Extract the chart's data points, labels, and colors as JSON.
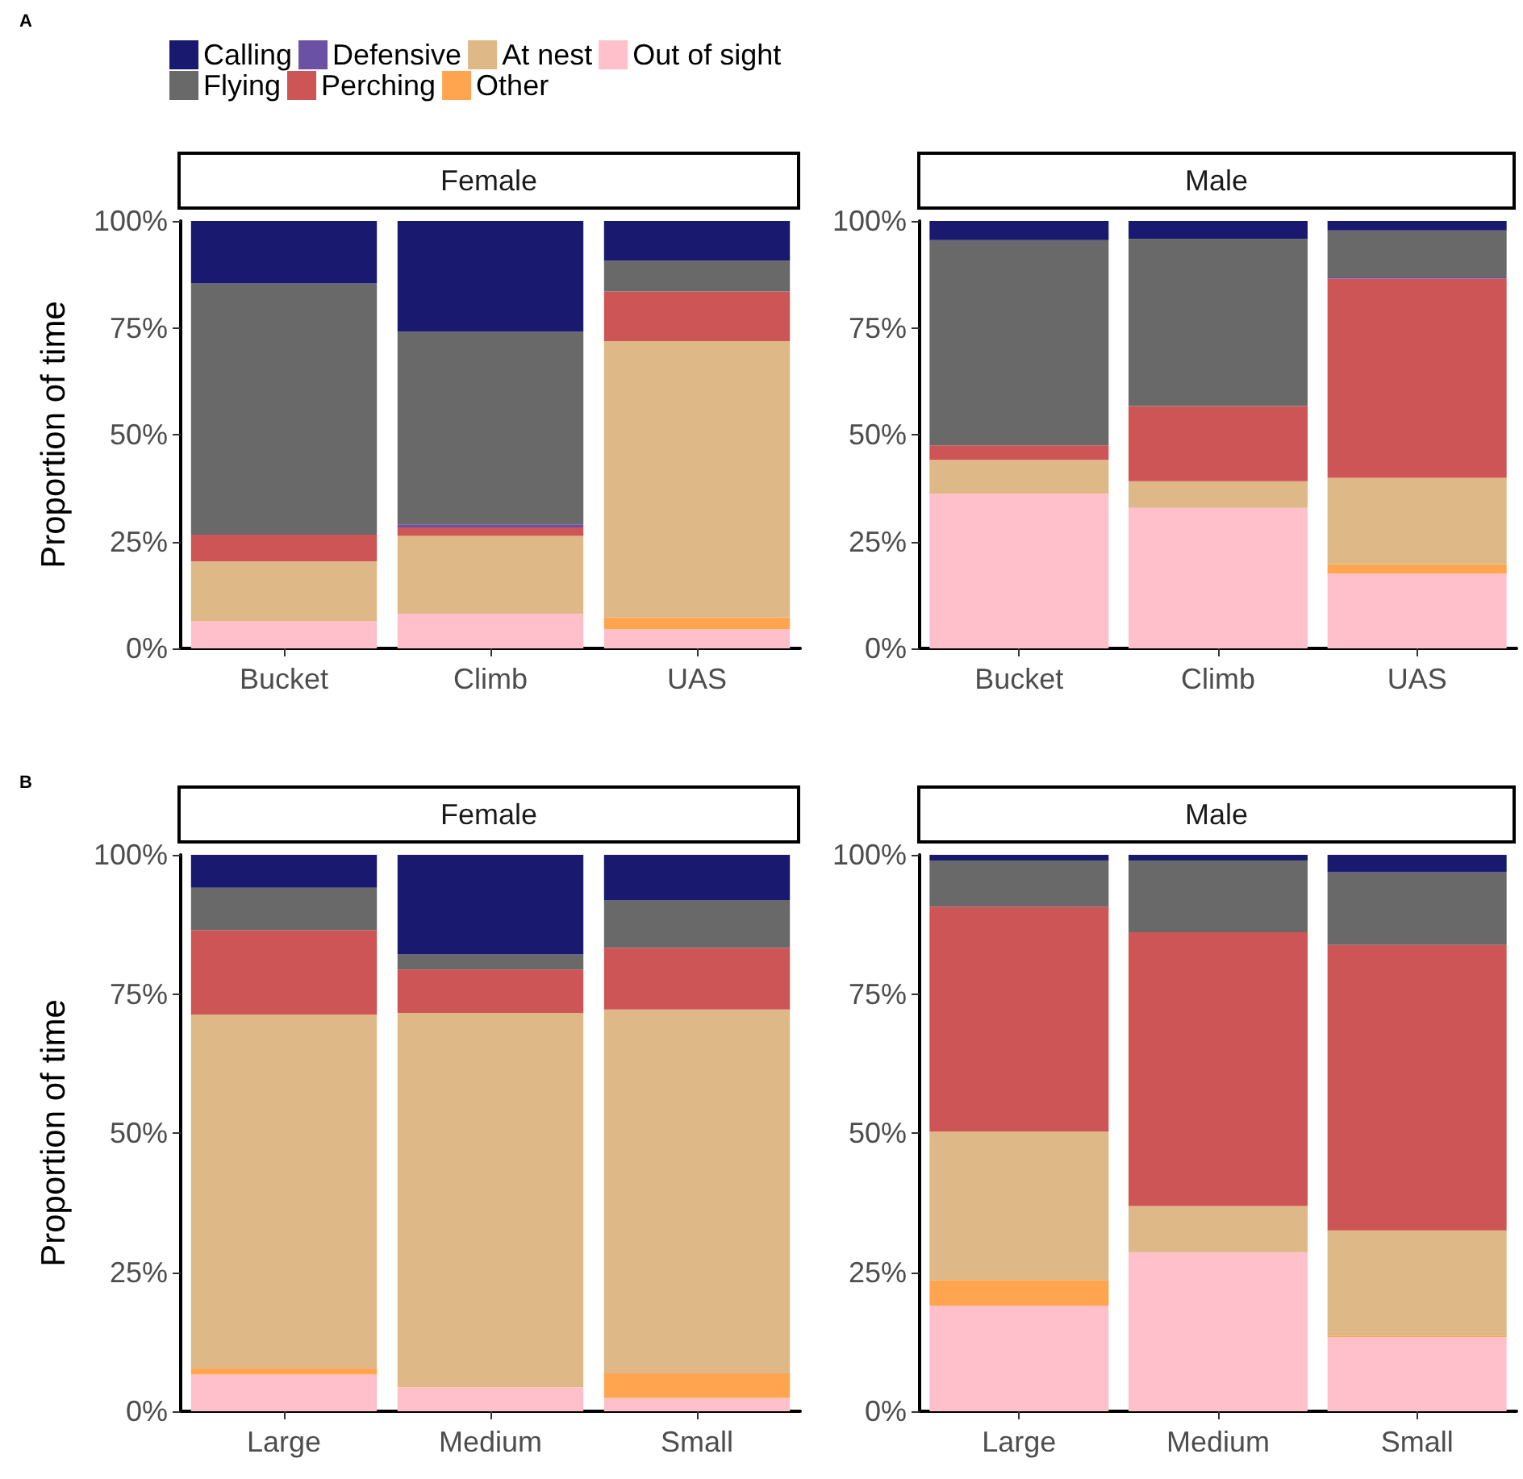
{
  "chart_data": [
    {
      "type": "bar",
      "stacked": true,
      "title": "Female",
      "ylabel": "Proportion of time",
      "annotations": [
        "A"
      ],
      "legend": "top",
      "categories": [
        "Bucket",
        "Climb",
        "UAS"
      ],
      "ylim": [
        0,
        100
      ],
      "yticks": [
        {
          "value": 0,
          "label": "0%"
        },
        {
          "value": 25,
          "label": "25%"
        },
        {
          "value": 50,
          "label": "50%"
        },
        {
          "value": 75,
          "label": "75%"
        },
        {
          "value": 100,
          "label": "100%"
        }
      ],
      "series": [
        {
          "name": "Out of sight",
          "color": "#ffc0cb",
          "values": [
            6.3,
            8.1,
            4.5
          ]
        },
        {
          "name": "Other",
          "color": "#ffa54f",
          "values": [
            0,
            0,
            2.7
          ]
        },
        {
          "name": "At nest",
          "color": "#deb887",
          "values": [
            14.1,
            18.2,
            64.7
          ]
        },
        {
          "name": "Perching",
          "color": "#cd5555",
          "values": [
            6.2,
            2.0,
            11.6
          ]
        },
        {
          "name": "Defensive",
          "color": "#6a51a3",
          "values": [
            0,
            0.7,
            0
          ]
        },
        {
          "name": "Flying",
          "color": "#696969",
          "values": [
            58.8,
            45.1,
            7.2
          ]
        },
        {
          "name": "Calling",
          "color": "#191970",
          "values": [
            14.6,
            25.9,
            9.3
          ]
        }
      ]
    },
    {
      "type": "bar",
      "stacked": true,
      "title": "Male",
      "categories": [
        "Bucket",
        "Climb",
        "UAS"
      ],
      "ylim": [
        0,
        100
      ],
      "yticks": [
        {
          "value": 0,
          "label": "0%"
        },
        {
          "value": 25,
          "label": "25%"
        },
        {
          "value": 50,
          "label": "50%"
        },
        {
          "value": 75,
          "label": "75%"
        },
        {
          "value": 100,
          "label": "100%"
        }
      ],
      "series": [
        {
          "color": "#ffc0cb",
          "values": [
            36.2,
            32.9,
            17.5
          ]
        },
        {
          "color": "#ffa54f",
          "values": [
            0,
            0,
            2.2
          ]
        },
        {
          "color": "#deb887",
          "values": [
            7.9,
            6.2,
            20.2
          ]
        },
        {
          "color": "#cd5555",
          "values": [
            3.4,
            17.6,
            46.6
          ]
        },
        {
          "color": "#6a51a3",
          "values": [
            0,
            0,
            0.3
          ]
        },
        {
          "color": "#696969",
          "values": [
            48.0,
            39.1,
            11.0
          ]
        },
        {
          "color": "#191970",
          "values": [
            4.5,
            4.2,
            2.2
          ]
        }
      ]
    },
    {
      "type": "bar",
      "stacked": true,
      "title": "Female",
      "ylabel": "Proportion of time",
      "annotations": [
        "B"
      ],
      "categories": [
        "Large",
        "Medium",
        "Small"
      ],
      "ylim": [
        0,
        100
      ],
      "yticks": [
        {
          "value": 0,
          "label": "0%"
        },
        {
          "value": 25,
          "label": "25%"
        },
        {
          "value": 50,
          "label": "50%"
        },
        {
          "value": 75,
          "label": "75%"
        },
        {
          "value": 100,
          "label": "100%"
        }
      ],
      "series": [
        {
          "color": "#ffc0cb",
          "values": [
            6.6,
            4.3,
            2.4
          ]
        },
        {
          "color": "#ffa54f",
          "values": [
            1.2,
            0,
            4.4
          ]
        },
        {
          "color": "#deb887",
          "values": [
            63.5,
            67.3,
            65.4
          ]
        },
        {
          "color": "#cd5555",
          "values": [
            15.2,
            7.8,
            11.1
          ]
        },
        {
          "color": "#6a51a3",
          "values": [
            0,
            0,
            0
          ]
        },
        {
          "color": "#696969",
          "values": [
            7.6,
            2.7,
            8.6
          ]
        },
        {
          "color": "#191970",
          "values": [
            5.9,
            17.9,
            8.1
          ]
        }
      ]
    },
    {
      "type": "bar",
      "stacked": true,
      "title": "Male",
      "categories": [
        "Large",
        "Medium",
        "Small"
      ],
      "ylim": [
        0,
        100
      ],
      "yticks": [
        {
          "value": 0,
          "label": "0%"
        },
        {
          "value": 25,
          "label": "25%"
        },
        {
          "value": 50,
          "label": "50%"
        },
        {
          "value": 75,
          "label": "75%"
        },
        {
          "value": 100,
          "label": "100%"
        }
      ],
      "series": [
        {
          "color": "#ffc0cb",
          "values": [
            19.0,
            28.6,
            13.3
          ]
        },
        {
          "color": "#ffa54f",
          "values": [
            4.6,
            0,
            0.3
          ]
        },
        {
          "color": "#deb887",
          "values": [
            26.7,
            8.3,
            18.9
          ]
        },
        {
          "color": "#cd5555",
          "values": [
            40.4,
            49.2,
            51.3
          ]
        },
        {
          "color": "#6a51a3",
          "values": [
            0,
            0,
            0
          ]
        },
        {
          "color": "#696969",
          "values": [
            8.3,
            12.9,
            13.1
          ]
        },
        {
          "color": "#191970",
          "values": [
            1.0,
            1.0,
            3.1
          ]
        }
      ]
    }
  ]
}
